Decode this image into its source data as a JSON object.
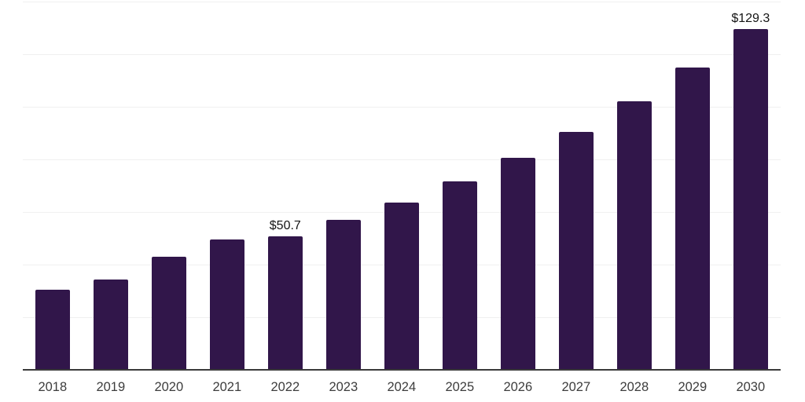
{
  "chart": {
    "background_color": "#ffffff",
    "bar_color": "#31164a",
    "gridline_color": "#f0f0f0",
    "axis_line_color": "#3a3a3a",
    "tick_label_color": "#3d3d3d",
    "annotation_text_color": "#141414"
  },
  "chart_data": {
    "type": "bar",
    "title": "",
    "xlabel": "",
    "ylabel": "",
    "categories": [
      "2018",
      "2019",
      "2020",
      "2021",
      "2022",
      "2023",
      "2024",
      "2025",
      "2026",
      "2027",
      "2028",
      "2029",
      "2030"
    ],
    "values": [
      30.4,
      34.2,
      42.8,
      49.4,
      50.7,
      56.9,
      63.5,
      71.5,
      80.3,
      90.2,
      102.0,
      114.9,
      129.3
    ],
    "data_labels": [
      {
        "category": "2022",
        "text": "$50.7"
      },
      {
        "category": "2030",
        "text": "$129.3"
      }
    ],
    "ylim": [
      0,
      140
    ],
    "grid_step": 20,
    "grid": "horizontal",
    "y_axis_labels_visible": false,
    "legend": "none"
  }
}
